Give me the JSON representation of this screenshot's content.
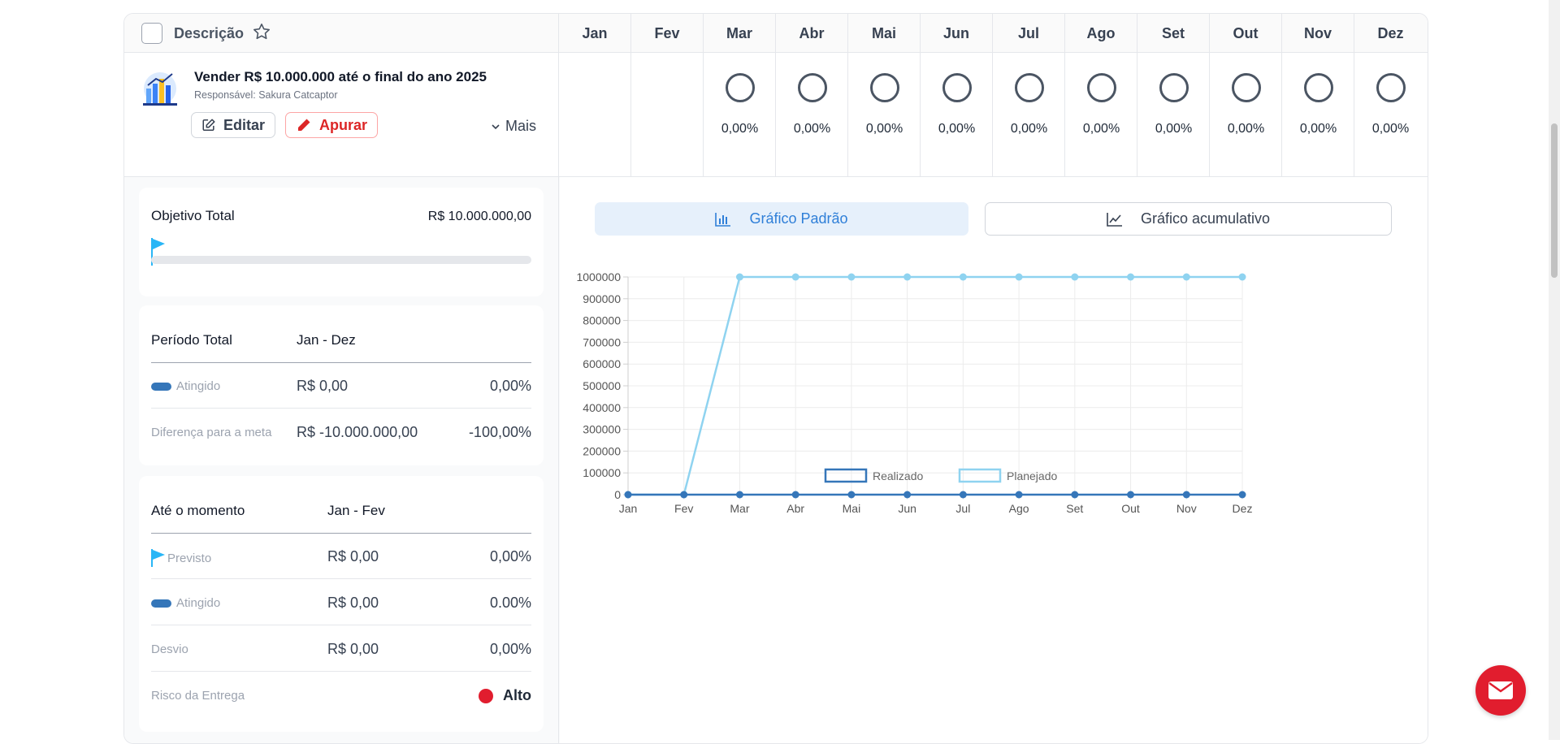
{
  "header": {
    "description_label": "Descrição",
    "months": [
      "Jan",
      "Fev",
      "Mar",
      "Abr",
      "Mai",
      "Jun",
      "Jul",
      "Ago",
      "Set",
      "Out",
      "Nov",
      "Dez"
    ]
  },
  "goal": {
    "title": "Vender R$ 10.000.000 até o final do ano 2025",
    "responsible": "Responsável: Sakura Catcaptor",
    "edit_label": "Editar",
    "apurar_label": "Apurar",
    "more_label": "Mais",
    "monthly_values": [
      "",
      "",
      "0,00%",
      "0,00%",
      "0,00%",
      "0,00%",
      "0,00%",
      "0,00%",
      "0,00%",
      "0,00%",
      "0,00%",
      "0,00%"
    ]
  },
  "summary": {
    "objective_label": "Objetivo Total",
    "objective_value": "R$ 10.000.000,00",
    "objective_progress": 0,
    "period_label": "Período Total",
    "period_value": "Jan - Dez",
    "achieved_label": "Atingido",
    "achieved_value": "R$ 0,00",
    "achieved_pct": "0,00%",
    "difference_label": "Diferença para a meta",
    "difference_value": "R$ -10.000.000,00",
    "difference_pct": "-100,00%"
  },
  "to_date": {
    "label": "Até o momento",
    "period": "Jan - Fev",
    "planned_label": "Previsto",
    "planned_value": "R$ 0,00",
    "planned_pct": "0,00%",
    "achieved_label": "Atingido",
    "achieved_value": "R$ 0,00",
    "achieved_pct": "0.00%",
    "deviation_label": "Desvio",
    "deviation_value": "R$ 0,00",
    "deviation_pct": "0,00%",
    "risk_label": "Risco da Entrega",
    "risk_value": "Alto"
  },
  "tabs": {
    "standard": "Gráfico Padrão",
    "cumulative": "Gráfico acumulativo"
  },
  "colors": {
    "realizado": "#3576b9",
    "planejado": "#8fd3f0",
    "accent": "#2f7fd8",
    "danger": "#e11d2e"
  },
  "chart_data": {
    "type": "line",
    "categories": [
      "Jan",
      "Fev",
      "Mar",
      "Abr",
      "Mai",
      "Jun",
      "Jul",
      "Ago",
      "Set",
      "Out",
      "Nov",
      "Dez"
    ],
    "y_ticks": [
      0,
      100000,
      200000,
      300000,
      400000,
      500000,
      600000,
      700000,
      800000,
      900000,
      1000000
    ],
    "ylim": [
      0,
      1000000
    ],
    "grid": true,
    "legend": "bottom",
    "series": [
      {
        "name": "Realizado",
        "values": [
          0,
          0,
          0,
          0,
          0,
          0,
          0,
          0,
          0,
          0,
          0,
          0
        ]
      },
      {
        "name": "Planejado",
        "values": [
          0,
          0,
          1000000,
          1000000,
          1000000,
          1000000,
          1000000,
          1000000,
          1000000,
          1000000,
          1000000,
          1000000
        ]
      }
    ]
  }
}
